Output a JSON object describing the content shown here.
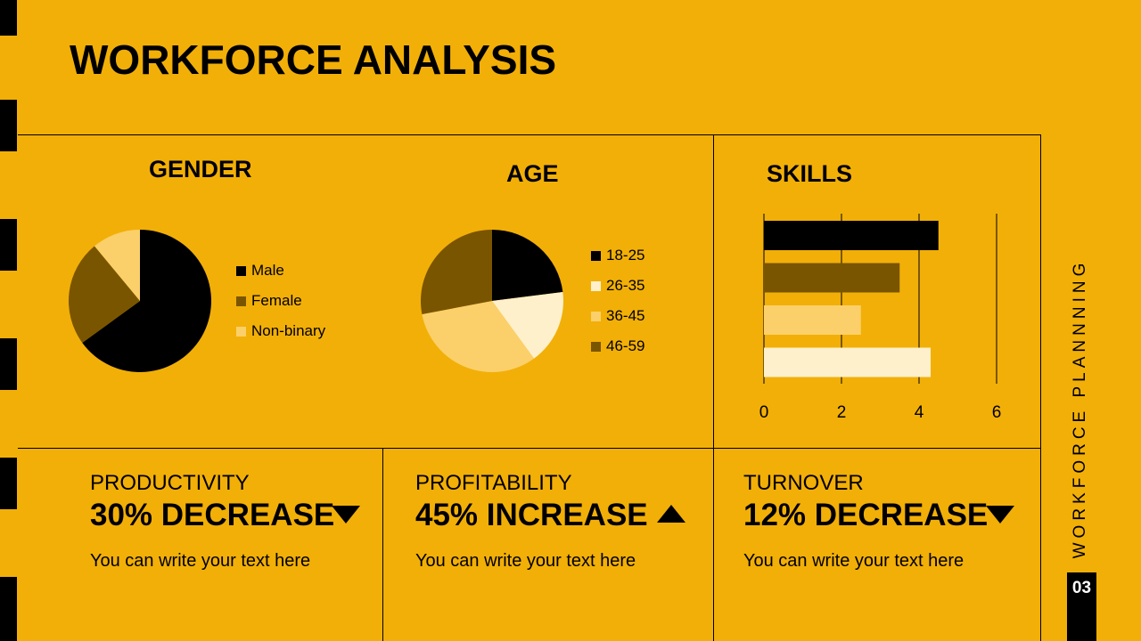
{
  "title": "WORKFORCE ANALYSIS",
  "side_label": "WORKFORCE PLANNNING",
  "page_number": "03",
  "colors": {
    "background": "#F2AF07",
    "black": "#000000",
    "brown": "#7A5500",
    "light": "#FBD06A",
    "cream": "#FEF0CB"
  },
  "chart_data": [
    {
      "type": "pie",
      "title": "GENDER",
      "categories": [
        "Male",
        "Female",
        "Non-binary"
      ],
      "values": [
        65,
        24,
        11
      ],
      "colors": [
        "#000000",
        "#7A5500",
        "#FBD06A"
      ]
    },
    {
      "type": "pie",
      "title": "AGE",
      "categories": [
        "18-25",
        "26-35",
        "36-45",
        "46-59"
      ],
      "values": [
        23,
        17,
        32,
        28
      ],
      "colors": [
        "#000000",
        "#FEF0CB",
        "#FBD06A",
        "#7A5500"
      ]
    },
    {
      "type": "bar",
      "orientation": "horizontal",
      "title": "SKILLS",
      "values": [
        4.5,
        3.5,
        2.5,
        4.3
      ],
      "colors": [
        "#000000",
        "#7A5500",
        "#FBD06A",
        "#FEF0CB"
      ],
      "xlim": [
        0,
        6
      ],
      "xticks": [
        0,
        2,
        4,
        6
      ],
      "grid": true
    }
  ],
  "metrics": [
    {
      "label": "PRODUCTIVITY",
      "value": "30% DECREASE",
      "direction": "down",
      "text": "You can write your text here"
    },
    {
      "label": "PROFITABILITY",
      "value": "45% INCREASE",
      "direction": "up",
      "text": "You can write your text here"
    },
    {
      "label": "TURNOVER",
      "value": "12% DECREASE",
      "direction": "down",
      "text": "You can write your text here"
    }
  ]
}
